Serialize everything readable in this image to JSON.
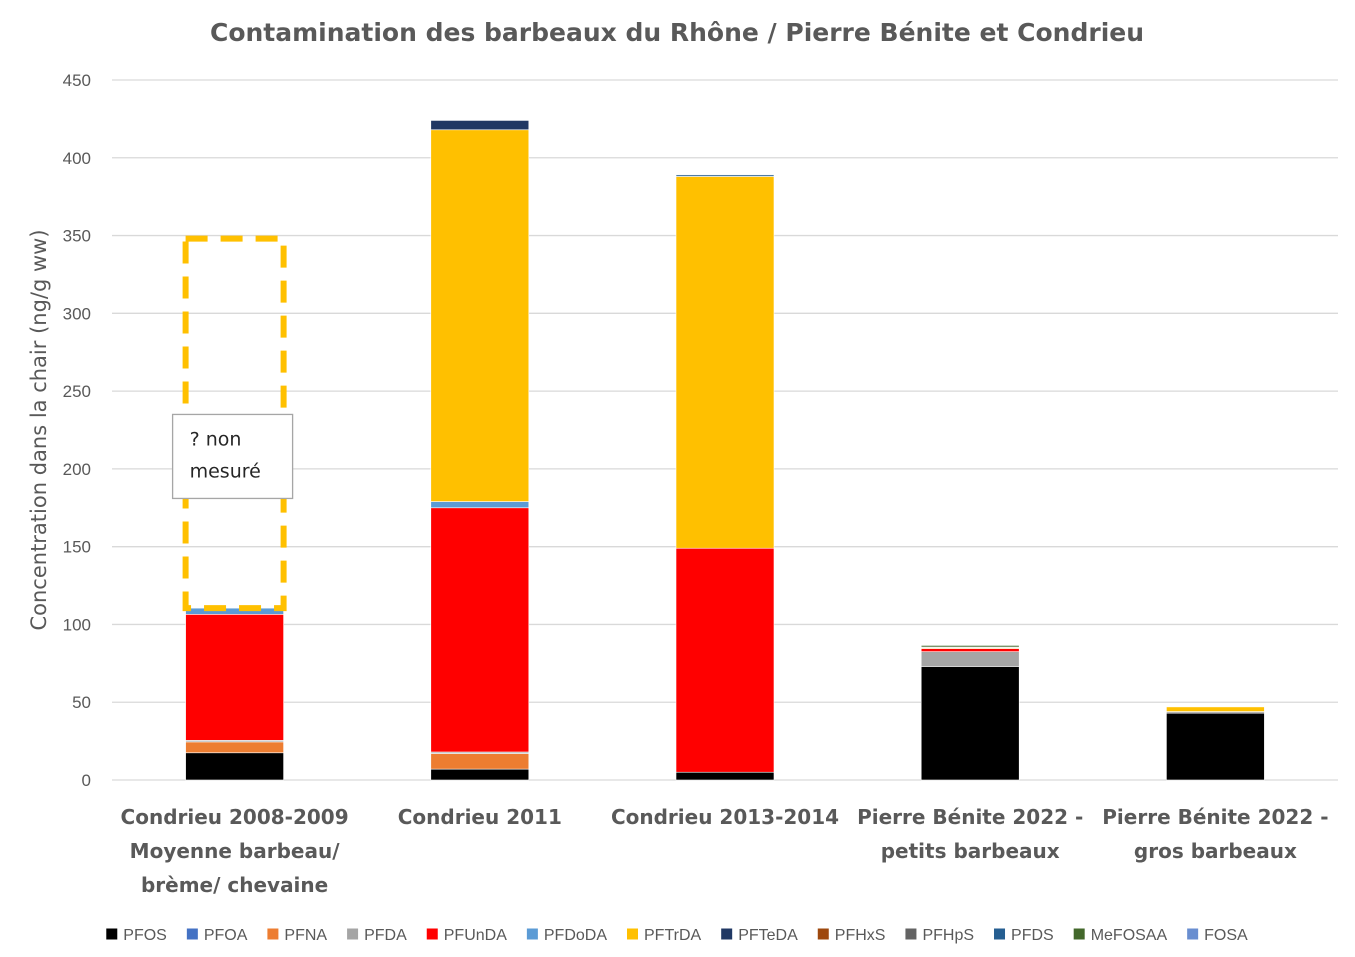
{
  "chart_data": {
    "type": "bar",
    "stacked": true,
    "title": "Contamination des barbeaux du Rhône / Pierre Bénite et Condrieu",
    "ylabel": "Concentration dans la chair (ng/g ww)",
    "xlabel": "",
    "ylim": [
      0,
      450
    ],
    "yticks": [
      0,
      50,
      100,
      150,
      200,
      250,
      300,
      350,
      400,
      450
    ],
    "grid": true,
    "legend_position": "bottom",
    "categories": [
      [
        "Condrieu 2008-2009",
        "Moyenne barbeau/",
        "brème/ chevaine"
      ],
      [
        "Condrieu 2011"
      ],
      [
        "Condrieu 2013-2014"
      ],
      [
        "Pierre Bénite 2022 -",
        "petits barbeaux"
      ],
      [
        "Pierre Bénite 2022 -",
        "gros barbeaux"
      ]
    ],
    "series": [
      {
        "name": "PFOS",
        "color": "#000000",
        "values": [
          17.5,
          7,
          5,
          73,
          43
        ]
      },
      {
        "name": "PFOA",
        "color": "#4472c4",
        "values": [
          0,
          0,
          0,
          0,
          0
        ]
      },
      {
        "name": "PFNA",
        "color": "#ed7d31",
        "values": [
          7,
          10,
          0,
          0,
          0
        ]
      },
      {
        "name": "PFDA",
        "color": "#a5a5a5",
        "values": [
          1,
          1,
          0,
          9.5,
          1
        ]
      },
      {
        "name": "PFUnDA",
        "color": "#ff0000",
        "values": [
          81,
          157,
          144,
          2,
          0
        ]
      },
      {
        "name": "PFDoDA",
        "color": "#5b9bd5",
        "values": [
          4,
          4,
          0,
          0,
          0
        ]
      },
      {
        "name": "PFTrDA",
        "color": "#ffc000",
        "values": [
          0,
          239,
          239,
          0.5,
          3
        ]
      },
      {
        "name": "PFTeDA",
        "color": "#203864",
        "values": [
          0,
          6,
          0,
          0,
          0
        ]
      },
      {
        "name": "PFHxS",
        "color": "#9e480e",
        "values": [
          0,
          0,
          0,
          0,
          0
        ]
      },
      {
        "name": "PFHpS",
        "color": "#636363",
        "values": [
          0,
          0,
          0,
          0.5,
          0
        ]
      },
      {
        "name": "PFDS",
        "color": "#255e91",
        "values": [
          0,
          0,
          1,
          0,
          0
        ]
      },
      {
        "name": "MeFOSAA",
        "color": "#43682b",
        "values": [
          0,
          0,
          0,
          1,
          0
        ]
      },
      {
        "name": "FOSA",
        "color": "#698ed0",
        "values": [
          0,
          0,
          0,
          0,
          0
        ]
      }
    ],
    "annotations": [
      {
        "type": "dashed-outline",
        "category_index": 0,
        "from": 110.5,
        "to": 348,
        "color": "#ffc000",
        "note_lines": [
          "? non",
          "mesuré"
        ]
      }
    ]
  }
}
